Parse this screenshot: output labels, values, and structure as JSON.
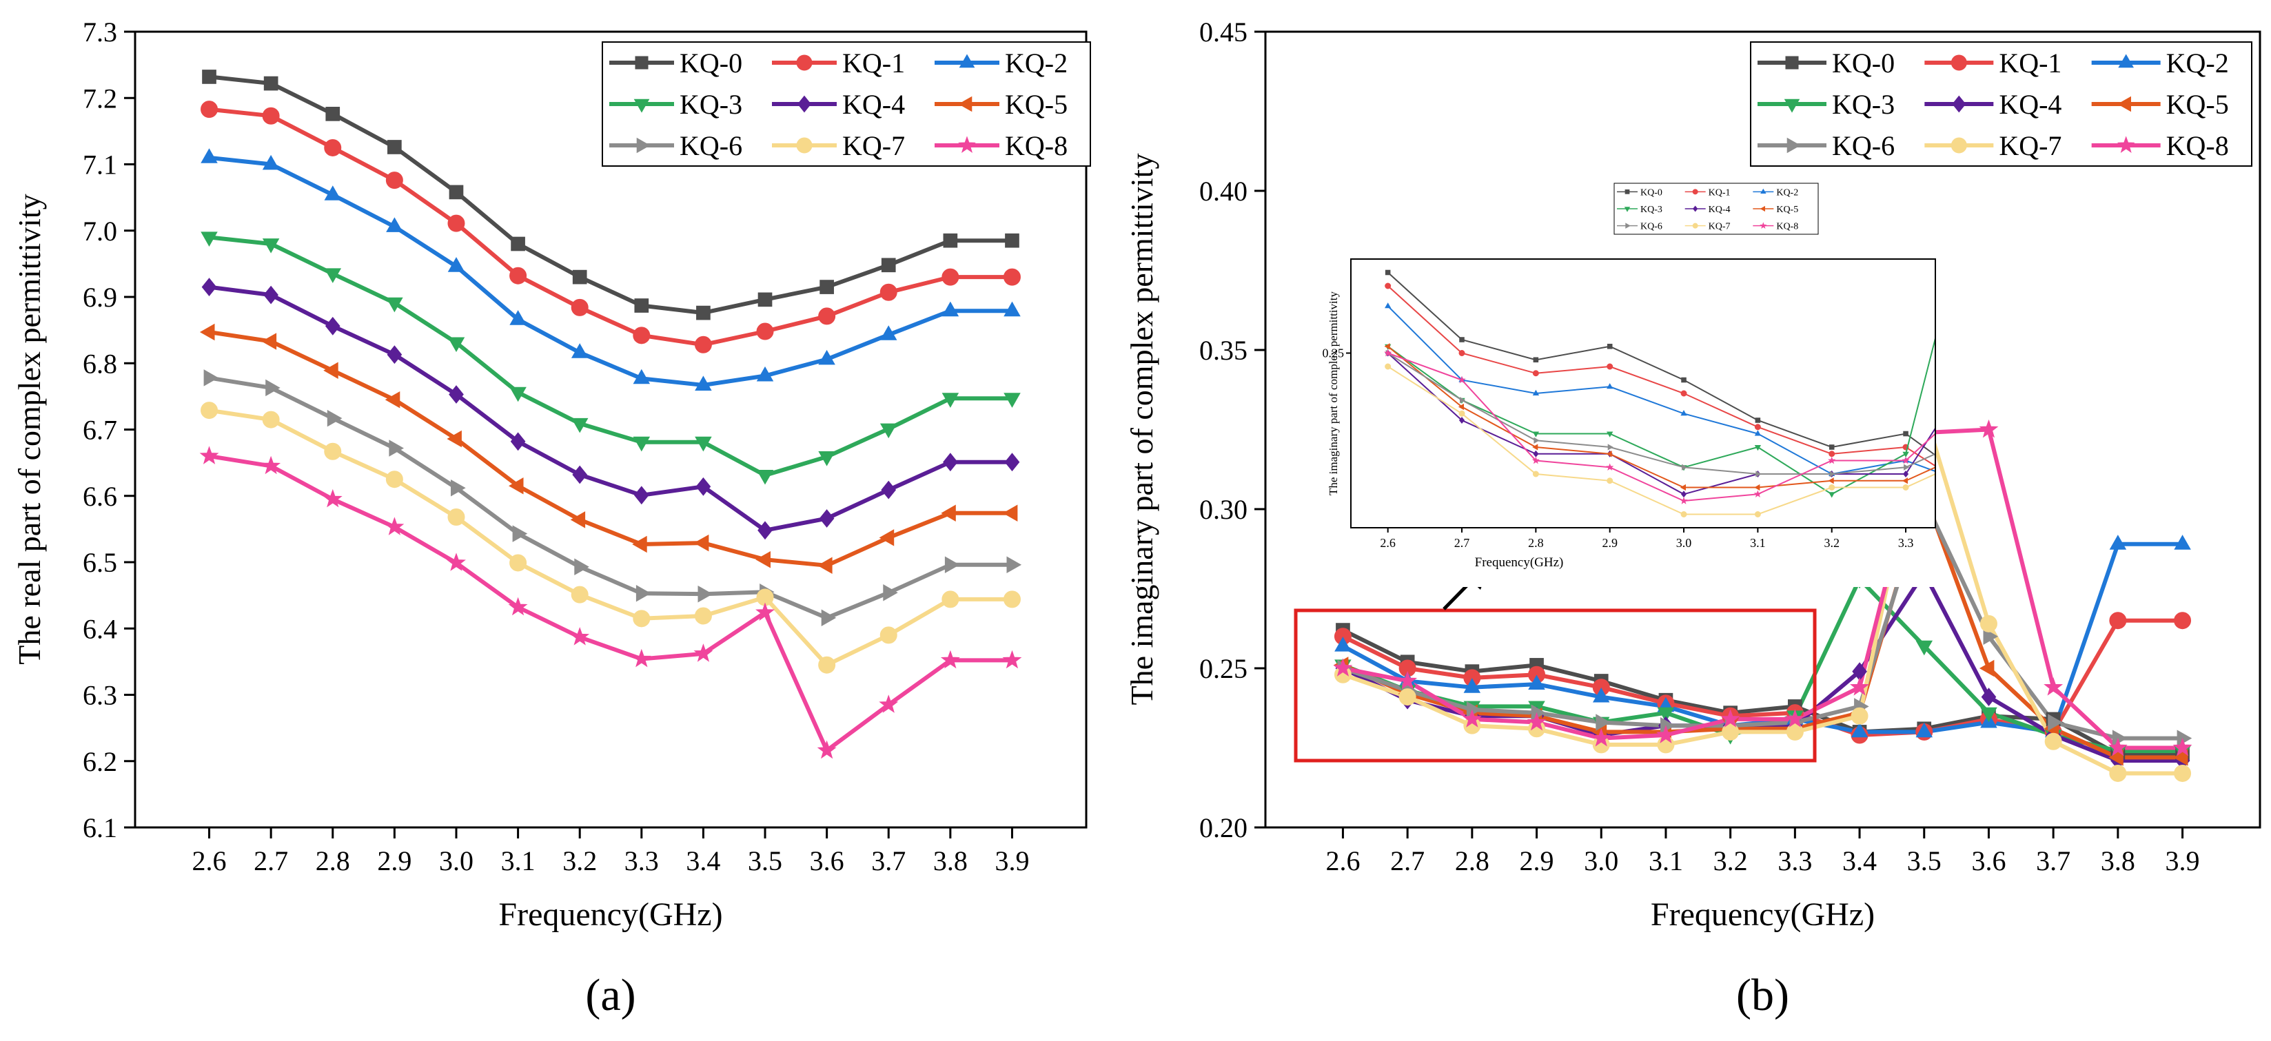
{
  "figure": {
    "panel_a_label": "(a)",
    "panel_b_label": "(b)"
  },
  "chart_data": [
    {
      "panel": "a",
      "type": "line",
      "title": "",
      "xlabel": "Frequency(GHz)",
      "ylabel": "The real part of complex permittivity",
      "xlim": [
        2.48,
        4.02
      ],
      "ylim": [
        6.1,
        7.3
      ],
      "x": [
        2.6,
        2.7,
        2.8,
        2.9,
        3.0,
        3.1,
        3.2,
        3.3,
        3.4,
        3.5,
        3.6,
        3.7,
        3.8,
        3.9
      ],
      "x_tick_labels": [
        "2.6",
        "2.7",
        "2.8",
        "2.9",
        "3.0",
        "3.1",
        "3.2",
        "3.3",
        "3.4",
        "3.5",
        "3.6",
        "3.7",
        "3.8",
        "3.9"
      ],
      "y_ticks": [
        6.1,
        6.2,
        6.3,
        6.4,
        6.5,
        6.6,
        6.7,
        6.8,
        6.9,
        7.0,
        7.1,
        7.2,
        7.3
      ],
      "y_tick_labels": [
        "6.1",
        "6.2",
        "6.3",
        "6.4",
        "6.5",
        "6.6",
        "6.7",
        "6.8",
        "6.9",
        "7.0",
        "7.1",
        "7.2",
        "7.3"
      ],
      "legend_position": "top-right",
      "series": [
        {
          "name": "KQ-0",
          "color": "#4d4d4d",
          "marker": "square",
          "values": [
            7.232,
            7.222,
            7.176,
            7.126,
            7.058,
            6.98,
            6.93,
            6.887,
            6.876,
            6.896,
            6.915,
            6.948,
            6.985,
            6.985
          ]
        },
        {
          "name": "KQ-1",
          "color": "#e84646",
          "marker": "circle",
          "values": [
            7.183,
            7.173,
            7.125,
            7.076,
            7.011,
            6.932,
            6.884,
            6.842,
            6.828,
            6.848,
            6.871,
            6.907,
            6.93,
            6.93
          ]
        },
        {
          "name": "KQ-2",
          "color": "#1f78d8",
          "marker": "triangle-up",
          "values": [
            7.11,
            7.1,
            7.054,
            7.006,
            6.946,
            6.866,
            6.816,
            6.777,
            6.767,
            6.781,
            6.806,
            6.843,
            6.879,
            6.879
          ]
        },
        {
          "name": "KQ-3",
          "color": "#2ea95a",
          "marker": "triangle-down",
          "values": [
            6.99,
            6.98,
            6.935,
            6.891,
            6.831,
            6.756,
            6.709,
            6.681,
            6.681,
            6.631,
            6.659,
            6.701,
            6.747,
            6.747
          ]
        },
        {
          "name": "KQ-4",
          "color": "#5a1e96",
          "marker": "diamond",
          "values": [
            6.915,
            6.903,
            6.856,
            6.813,
            6.753,
            6.682,
            6.632,
            6.601,
            6.614,
            6.548,
            6.566,
            6.609,
            6.651,
            6.651
          ]
        },
        {
          "name": "KQ-5",
          "color": "#e2581c",
          "marker": "triangle-left",
          "values": [
            6.847,
            6.833,
            6.789,
            6.745,
            6.686,
            6.615,
            6.564,
            6.527,
            6.529,
            6.504,
            6.495,
            6.537,
            6.574,
            6.574
          ]
        },
        {
          "name": "KQ-6",
          "color": "#8c8c8c",
          "marker": "triangle-right",
          "values": [
            6.778,
            6.763,
            6.717,
            6.672,
            6.612,
            6.543,
            6.493,
            6.453,
            6.452,
            6.455,
            6.416,
            6.454,
            6.496,
            6.496
          ]
        },
        {
          "name": "KQ-7",
          "color": "#f7d98a",
          "marker": "hexagon",
          "values": [
            6.729,
            6.715,
            6.667,
            6.625,
            6.568,
            6.499,
            6.451,
            6.415,
            6.419,
            6.447,
            6.345,
            6.39,
            6.444,
            6.444
          ]
        },
        {
          "name": "KQ-8",
          "color": "#f0449c",
          "marker": "star",
          "values": [
            6.66,
            6.645,
            6.595,
            6.553,
            6.499,
            6.432,
            6.387,
            6.354,
            6.362,
            6.424,
            6.216,
            6.285,
            6.352,
            6.352
          ]
        }
      ]
    },
    {
      "panel": "b",
      "type": "line",
      "title": "",
      "xlabel": "Frequency(GHz)",
      "ylabel": "The imaginary part of complex permittivity",
      "xlim": [
        2.48,
        4.02
      ],
      "ylim": [
        0.2,
        0.45
      ],
      "x": [
        2.6,
        2.7,
        2.8,
        2.9,
        3.0,
        3.1,
        3.2,
        3.3,
        3.4,
        3.5,
        3.6,
        3.7,
        3.8,
        3.9
      ],
      "x_tick_labels": [
        "2.6",
        "2.7",
        "2.8",
        "2.9",
        "3.0",
        "3.1",
        "3.2",
        "3.3",
        "3.4",
        "3.5",
        "3.6",
        "3.7",
        "3.8",
        "3.9"
      ],
      "y_ticks": [
        0.2,
        0.25,
        0.3,
        0.35,
        0.4,
        0.45
      ],
      "y_tick_labels": [
        "0.20",
        "0.25",
        "0.30",
        "0.35",
        "0.40",
        "0.45"
      ],
      "legend_position": "top-right",
      "series": [
        {
          "name": "KQ-0",
          "color": "#4d4d4d",
          "marker": "square",
          "values": [
            0.262,
            0.252,
            0.249,
            0.251,
            0.246,
            0.24,
            0.236,
            0.238,
            0.23,
            0.231,
            0.235,
            0.234,
            0.223,
            0.223
          ]
        },
        {
          "name": "KQ-1",
          "color": "#e84646",
          "marker": "circle",
          "values": [
            0.26,
            0.25,
            0.247,
            0.248,
            0.244,
            0.239,
            0.235,
            0.236,
            0.229,
            0.23,
            0.234,
            0.23,
            0.265,
            0.265
          ]
        },
        {
          "name": "KQ-2",
          "color": "#1f78d8",
          "marker": "triangle-up",
          "values": [
            0.257,
            0.246,
            0.244,
            0.245,
            0.241,
            0.238,
            0.232,
            0.234,
            0.23,
            0.23,
            0.233,
            0.23,
            0.289,
            0.289
          ]
        },
        {
          "name": "KQ-3",
          "color": "#2ea95a",
          "marker": "triangle-down",
          "values": [
            0.251,
            0.243,
            0.238,
            0.238,
            0.233,
            0.236,
            0.229,
            0.235,
            0.278,
            0.257,
            0.236,
            0.229,
            0.224,
            0.224
          ]
        },
        {
          "name": "KQ-4",
          "color": "#5a1e96",
          "marker": "diamond",
          "values": [
            0.25,
            0.24,
            0.235,
            0.235,
            0.229,
            0.232,
            0.232,
            0.232,
            0.249,
            0.28,
            0.241,
            0.229,
            0.221,
            0.221
          ]
        },
        {
          "name": "KQ-5",
          "color": "#e2581c",
          "marker": "triangle-left",
          "values": [
            0.251,
            0.242,
            0.236,
            0.235,
            0.23,
            0.23,
            0.231,
            0.231,
            0.236,
            0.305,
            0.25,
            0.231,
            0.222,
            0.222
          ]
        },
        {
          "name": "KQ-6",
          "color": "#8c8c8c",
          "marker": "triangle-right",
          "values": [
            0.25,
            0.243,
            0.237,
            0.236,
            0.233,
            0.232,
            0.232,
            0.233,
            0.238,
            0.303,
            0.26,
            0.233,
            0.228,
            0.228
          ]
        },
        {
          "name": "KQ-7",
          "color": "#f7d98a",
          "marker": "hexagon",
          "values": [
            0.248,
            0.241,
            0.232,
            0.231,
            0.226,
            0.226,
            0.23,
            0.23,
            0.235,
            0.331,
            0.264,
            0.227,
            0.217,
            0.217
          ]
        },
        {
          "name": "KQ-8",
          "color": "#f0449c",
          "marker": "star",
          "values": [
            0.25,
            0.246,
            0.234,
            0.233,
            0.228,
            0.229,
            0.234,
            0.234,
            0.244,
            0.324,
            0.325,
            0.244,
            0.225,
            0.225
          ]
        }
      ],
      "inset": {
        "xlabel": "Frequency(GHz)",
        "ylabel": "The imaginary part of complex permittivity",
        "xlim": [
          2.55,
          3.34
        ],
        "ylim": [
          0.224,
          0.264
        ],
        "x_tick_labels": [
          "2.6",
          "2.7",
          "2.8",
          "2.9",
          "3.0",
          "3.1",
          "3.2",
          "3.3"
        ],
        "y_tick_labels": [
          "0.25"
        ],
        "y_ticks": [
          0.25
        ],
        "source_x_range": [
          2.6,
          3.3
        ]
      }
    }
  ]
}
